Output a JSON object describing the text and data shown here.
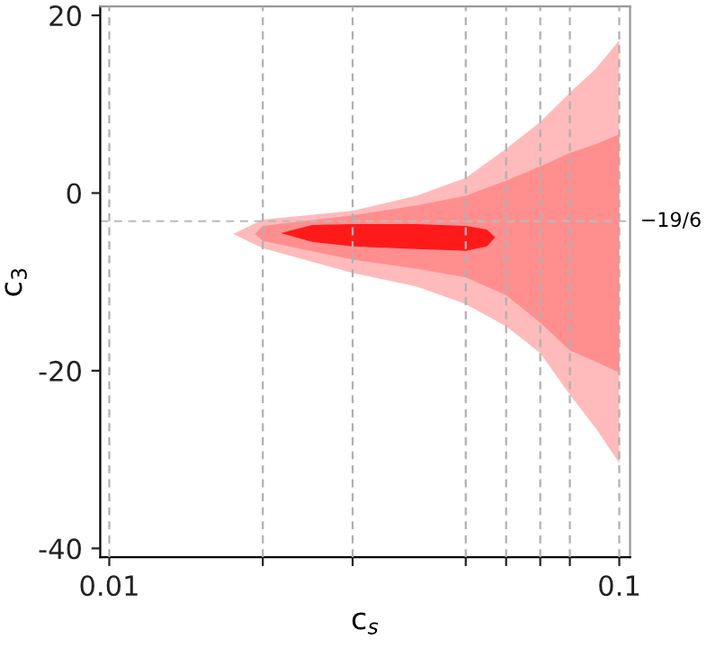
{
  "chart_data": {
    "type": "area",
    "xlabel": "c$_{s}$",
    "ylabel": "c$_{3}$",
    "log": "x",
    "xlim": [
      0.0096,
      0.105
    ],
    "ylim": [
      -41,
      21
    ],
    "xticks": [
      0.01,
      {
        "value": 0.02,
        "label": null
      },
      {
        "value": 0.03,
        "label": null
      },
      {
        "value": 0.05,
        "label": null
      },
      {
        "value": 0.06,
        "label": null
      },
      {
        "value": 0.07,
        "label": null
      },
      {
        "value": 0.08,
        "label": null
      },
      0.1
    ],
    "yticks": [
      -40,
      -20,
      0,
      20
    ],
    "grid": "x",
    "ref_lines": [
      {
        "axis": "y",
        "value": -3.1667,
        "label": "−19/6",
        "line_style": "dashed",
        "color": "#bbbbbb"
      }
    ],
    "series": [
      {
        "color": "#ffbbbb",
        "x": [
          0.0175,
          0.02,
          0.03,
          0.04,
          0.05,
          0.06,
          0.07,
          0.08,
          0.09,
          0.1,
          0.1,
          0.09,
          0.08,
          0.07,
          0.06,
          0.05,
          0.04,
          0.03,
          0.02
        ],
        "values": [
          -4.6,
          -3,
          -2,
          -0.3,
          1.7,
          5,
          8,
          11.3,
          14,
          17.2,
          -30.4,
          -26.5,
          -22.7,
          -18,
          -15,
          -12.5,
          -10.5,
          -9,
          -6.2
        ]
      },
      {
        "color": "#ff8f8f",
        "x": [
          0.0193,
          0.02,
          0.03,
          0.04,
          0.05,
          0.06,
          0.07,
          0.08,
          0.09,
          0.1,
          0.1,
          0.09,
          0.08,
          0.07,
          0.06,
          0.05,
          0.04,
          0.03,
          0.02
        ],
        "values": [
          -4.6,
          -3.7,
          -2.5,
          -1.4,
          -0.3,
          1.4,
          3,
          4.5,
          5.5,
          6.6,
          -20.2,
          -19,
          -17.7,
          -14.6,
          -11.5,
          -9.5,
          -8.5,
          -7.5,
          -5.4
        ]
      },
      {
        "color": "#ff1a1a",
        "x": [
          0.0217,
          0.025,
          0.03,
          0.04,
          0.05,
          0.055,
          0.0571,
          0.055,
          0.05,
          0.04,
          0.03,
          0.025
        ],
        "values": [
          -4.5,
          -3.6,
          -3.5,
          -3.5,
          -3.7,
          -4.1,
          -5,
          -6,
          -6.5,
          -6.3,
          -6,
          -5.5
        ]
      }
    ]
  }
}
